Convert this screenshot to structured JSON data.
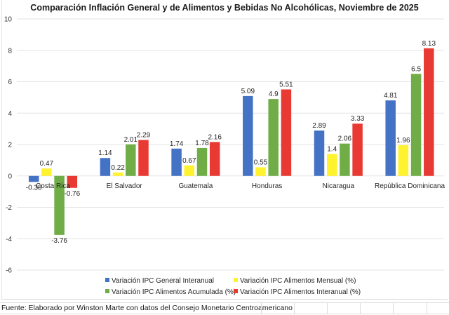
{
  "chart_data": {
    "type": "bar",
    "title": "Comparación Inflación General y de Alimentos y Bebidas No Alcohólicas, Noviembre de 2025",
    "xlabel": "",
    "ylabel": "",
    "ylim": [
      -6,
      10
    ],
    "yticks": [
      10,
      8,
      6,
      4,
      2,
      0,
      -2,
      -4,
      -6
    ],
    "grid": true,
    "legend_position": "bottom",
    "categories": [
      "Costa Rica",
      "El Salvador",
      "Guatemala",
      "Honduras",
      "Nicaragua",
      "República Dominicana"
    ],
    "series": [
      {
        "name": "Variación IPC General Interanual",
        "color": "#4472C4",
        "values": [
          -0.38,
          1.14,
          1.74,
          5.09,
          2.89,
          4.81
        ],
        "labels": [
          "-0.38",
          "1.14",
          "1.74",
          "5.09",
          "2.89",
          "4.81"
        ]
      },
      {
        "name": "Variación IPC Alimentos Mensual (%)",
        "color": "#FFF22E",
        "values": [
          0.47,
          0.22,
          0.67,
          0.55,
          1.4,
          1.96
        ],
        "labels": [
          "0.47",
          "0.22",
          "0.67",
          "0.55",
          "1.4",
          "1.96"
        ]
      },
      {
        "name": "Variación IPC Alimentos Acumulada (%)",
        "color": "#70AD47",
        "values": [
          -3.76,
          2.01,
          1.78,
          4.9,
          2.06,
          6.5
        ],
        "labels": [
          "-3.76",
          "2.01",
          "1.78",
          "4.9",
          "2.06",
          "6.5"
        ]
      },
      {
        "name": "Variación IPC Alimentos Interanual (%)",
        "color": "#E83A33",
        "values": [
          -0.76,
          2.29,
          2.16,
          5.51,
          3.33,
          8.13
        ],
        "labels": [
          "-0.76",
          "2.29",
          "2.16",
          "5.51",
          "3.33",
          "8.13"
        ]
      }
    ]
  },
  "footer": {
    "source": "Fuente: Elaborado por Winston Marte con datos del Consejo Monetario Centroamericano"
  }
}
